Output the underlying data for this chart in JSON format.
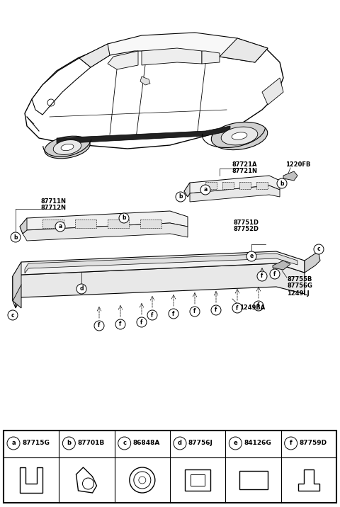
{
  "bg_color": "#ffffff",
  "legend_items": [
    {
      "label": "a",
      "part": "87715G"
    },
    {
      "label": "b",
      "part": "87701B"
    },
    {
      "label": "c",
      "part": "86848A"
    },
    {
      "label": "d",
      "part": "87756J"
    },
    {
      "label": "e",
      "part": "84126G"
    },
    {
      "label": "f",
      "part": "87759D"
    }
  ],
  "label_fs": 5.5,
  "part_fs": 6.0
}
